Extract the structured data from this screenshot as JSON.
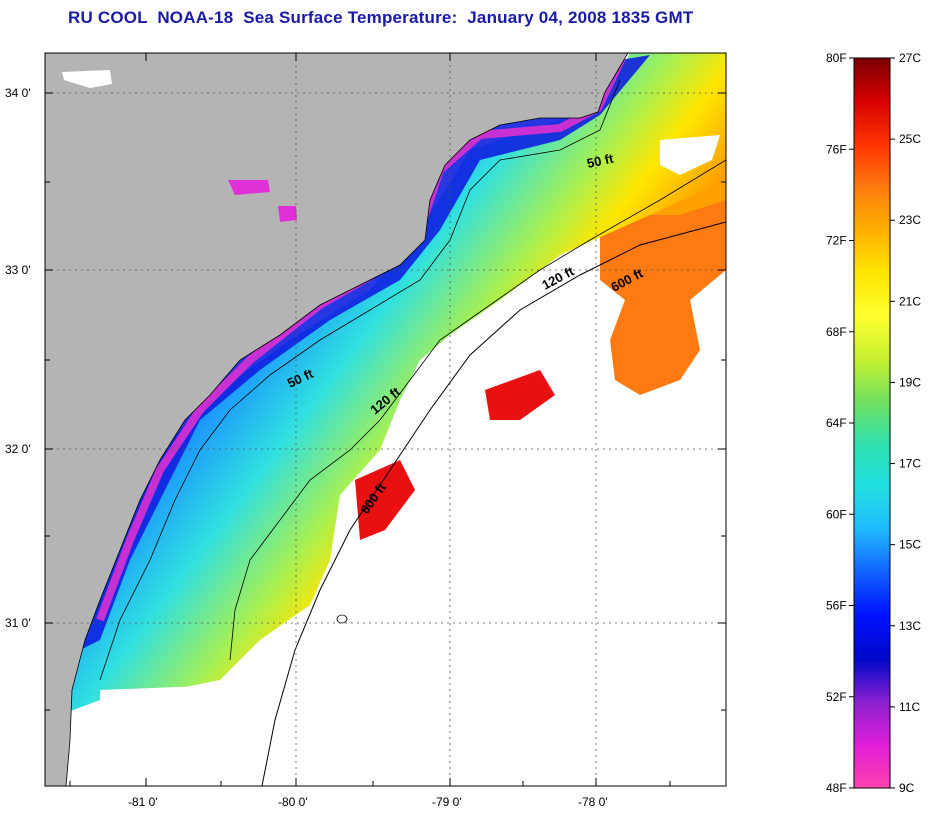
{
  "title": "RU COOL  NOAA-18  Sea Surface Temperature:  January 04, 2008 1835 GMT",
  "axes": {
    "lon_labels": [
      "-81 0'",
      "-80 0'",
      "-79 0'",
      "-78 0'"
    ],
    "lat_labels": [
      "34 0'",
      "33 0'",
      "32 0'",
      "31 0'"
    ]
  },
  "contours": {
    "labels": [
      "50 ft",
      "120 ft",
      "600 ft",
      "50 ft",
      "120 ft",
      "600 ft"
    ]
  },
  "colorbar": {
    "fahrenheit": [
      "80F",
      "76F",
      "72F",
      "68F",
      "64F",
      "60F",
      "56F",
      "52F",
      "48F"
    ],
    "celsius": [
      "27C",
      "25C",
      "23C",
      "21C",
      "19C",
      "17C",
      "15C",
      "13C",
      "11C",
      "9C"
    ],
    "colors": [
      "#7a0000",
      "#d80000",
      "#ff3300",
      "#ff7a10",
      "#ffb000",
      "#ffe600",
      "#ffff30",
      "#c8f030",
      "#70e060",
      "#30e0b0",
      "#20e0e0",
      "#20b8ff",
      "#1060ff",
      "#0010ff",
      "#0008c8",
      "#8a20d0",
      "#e020d8",
      "#ff40b0"
    ]
  },
  "colors": {
    "land": "#b4b4b4",
    "title": "#1a1aa8"
  }
}
